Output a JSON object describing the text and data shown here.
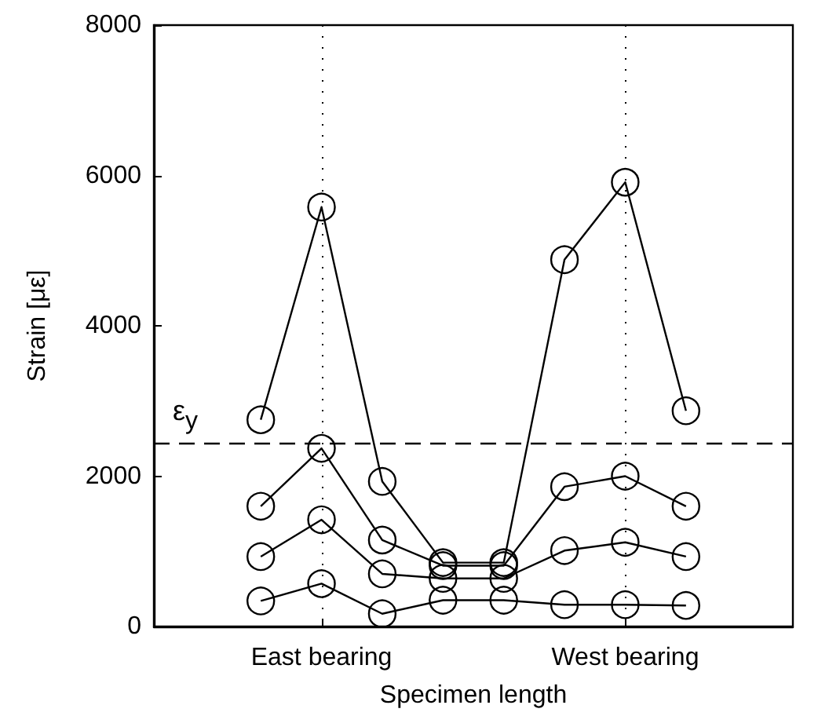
{
  "chart_data": {
    "type": "line",
    "xlabel": "Specimen length",
    "ylabel": "Strain [με]",
    "categories": [
      null,
      "East bearing",
      null,
      null,
      null,
      null,
      "West bearing",
      null
    ],
    "ylim": [
      0,
      8000
    ],
    "yticks": [
      0,
      2000,
      4000,
      6000,
      8000
    ],
    "series": [
      {
        "color": "#000000",
        "values": [
          2750,
          5580,
          1930,
          850,
          850,
          4880,
          5910,
          2870
        ]
      },
      {
        "color": "#000000",
        "values": [
          1600,
          2370,
          1150,
          810,
          810,
          1860,
          2000,
          1600
        ]
      },
      {
        "color": "#000000",
        "values": [
          930,
          1420,
          700,
          640,
          640,
          1010,
          1120,
          930
        ]
      },
      {
        "color": "#000000",
        "values": [
          340,
          570,
          170,
          350,
          350,
          290,
          290,
          280
        ]
      }
    ],
    "ref_lines": [
      {
        "axis": "y",
        "value": 2430,
        "label": "ε$_{y}$",
        "line_style": "dashed",
        "color": "#000000"
      }
    ],
    "grid": "x",
    "marker": "circle",
    "line_style": "solid"
  }
}
